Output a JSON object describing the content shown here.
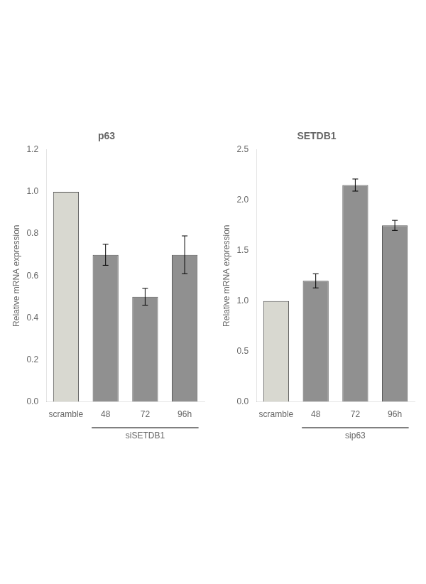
{
  "chart_data": [
    {
      "type": "bar",
      "title": "p63",
      "categories": [
        "scramble",
        "48",
        "72",
        "96h"
      ],
      "values": [
        1.0,
        0.7,
        0.5,
        0.7
      ],
      "errors": [
        null,
        0.05,
        0.04,
        0.09
      ],
      "colors": [
        "#d8d8d0",
        "#909090",
        "#909090",
        "#909090"
      ],
      "ylabel": "Relative mRNA expression",
      "xlabel": "siSETDB1",
      "ylim": [
        0,
        1.2
      ],
      "yticks": [
        {
          "value": 0,
          "label": "0.0"
        },
        0.2,
        0.4,
        0.6,
        0.8,
        {
          "value": 1.0,
          "label": "1.0"
        },
        1.2
      ],
      "grid": false
    },
    {
      "type": "bar",
      "title": "SETDB1",
      "categories": [
        "scramble",
        "48",
        "72",
        "96h"
      ],
      "values": [
        1.0,
        1.2,
        2.15,
        1.75
      ],
      "errors": [
        null,
        0.07,
        0.06,
        0.05
      ],
      "colors": [
        "#d8d8d0",
        "#909090",
        "#909090",
        "#909090"
      ],
      "ylabel": "Relative mRNA expression",
      "xlabel": "sip63",
      "ylim": [
        0,
        2.5
      ],
      "yticks": [
        {
          "value": 0,
          "label": "0.0"
        },
        0.5,
        {
          "value": 1.0,
          "label": "1.0"
        },
        1.5,
        {
          "value": 2.0,
          "label": "2.0"
        },
        2.5
      ],
      "grid": false
    }
  ]
}
